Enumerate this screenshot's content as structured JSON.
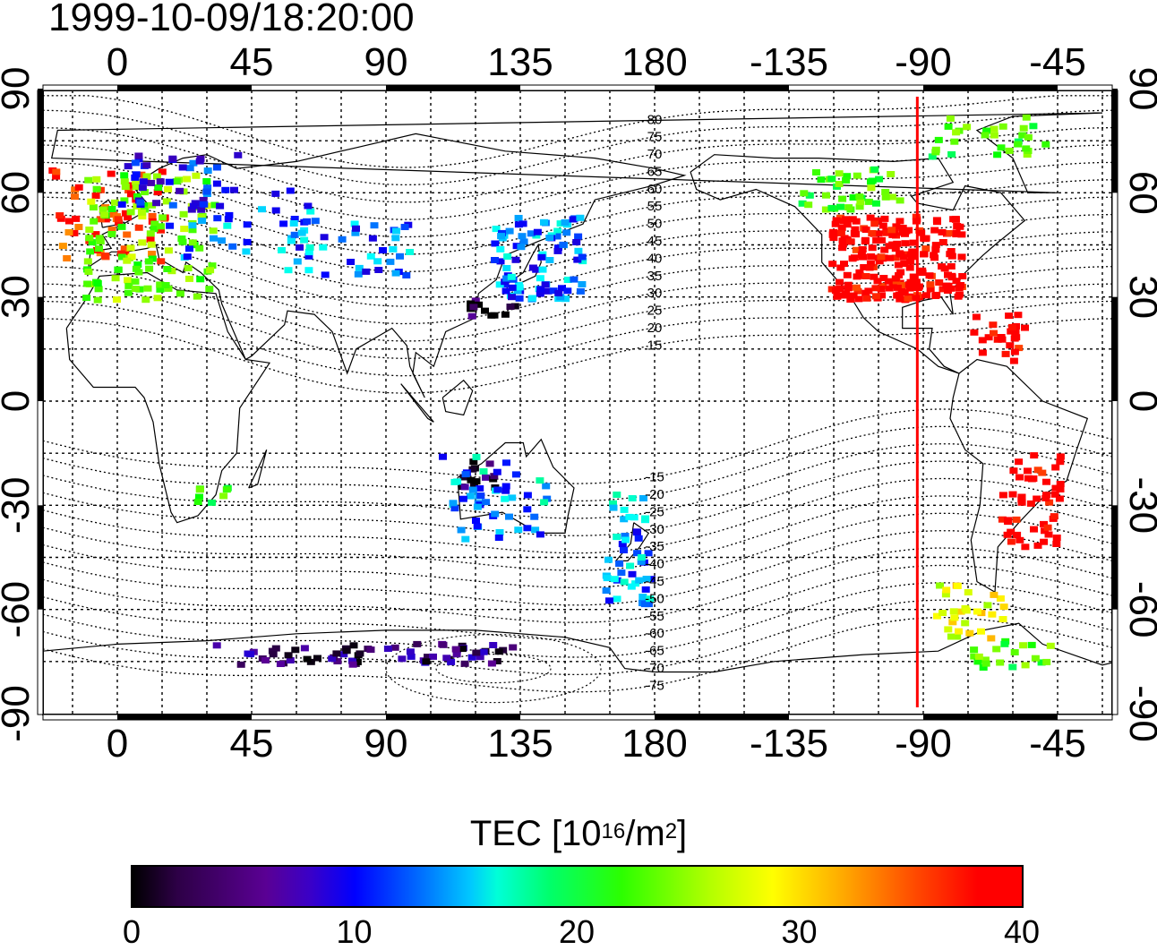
{
  "title": "1999-10-09/18:20:00",
  "map": {
    "lon_labels_top": [
      "0",
      "45",
      "90",
      "135",
      "180",
      "-135",
      "-90",
      "-45"
    ],
    "lon_labels_bottom": [
      "0",
      "45",
      "90",
      "135",
      "180",
      "-135",
      "-90",
      "-45"
    ],
    "lat_labels_left": [
      "90",
      "60",
      "30",
      "0",
      "-30",
      "-60",
      "-90"
    ],
    "lat_labels_right": [
      "90",
      "60",
      "30",
      "0",
      "-30",
      "-60",
      "-90"
    ],
    "contour_labels": [
      "80",
      "75",
      "70",
      "65",
      "60",
      "55",
      "50",
      "45",
      "40",
      "35",
      "30",
      "25",
      "20",
      "15",
      "-15",
      "-20",
      "-25",
      "-30",
      "-35",
      "-40",
      "-45",
      "-50",
      "-55",
      "-60",
      "-65",
      "-70",
      "-75"
    ],
    "meridian_marker_lon": -92,
    "meridian_marker_color": "#ff0000"
  },
  "colorbar": {
    "title_main": "TEC  [10",
    "title_sup1": "16",
    "title_mid": "/m",
    "title_sup2": "2",
    "title_end": "]",
    "tick_labels": [
      "0",
      "10",
      "20",
      "30",
      "40"
    ],
    "range": [
      0,
      40
    ],
    "colors": [
      "#000000",
      "#5a0094",
      "#0000ff",
      "#00ffff",
      "#00ff00",
      "#ffff00",
      "#ff0000"
    ]
  }
}
